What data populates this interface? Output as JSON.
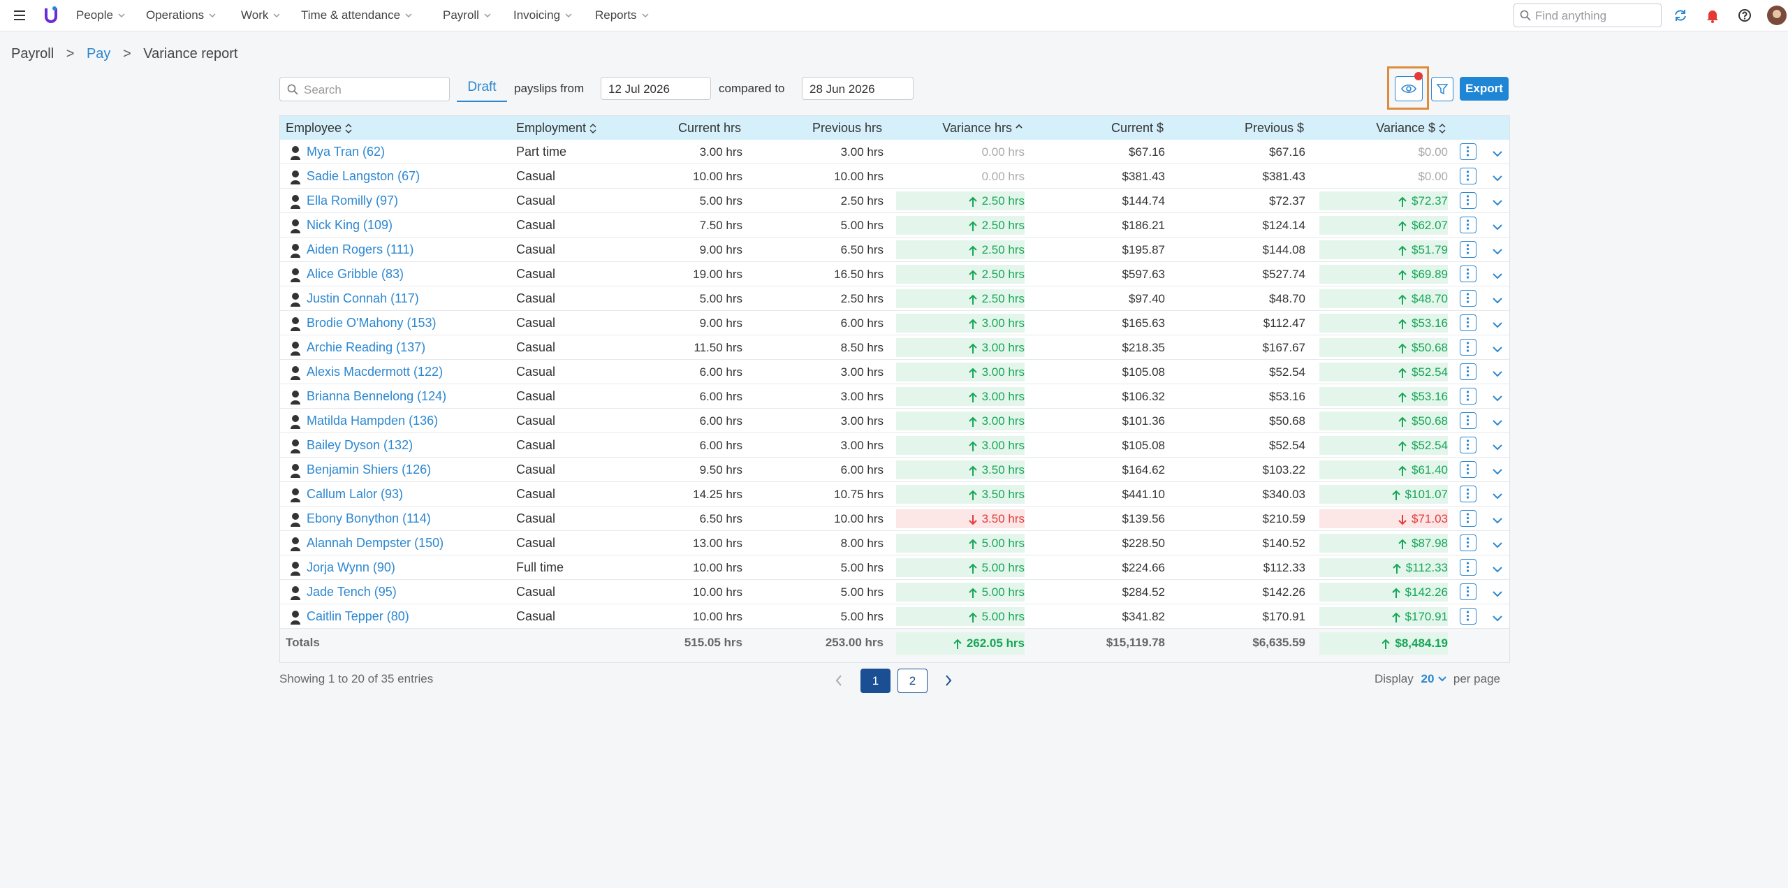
{
  "nav": {
    "items": [
      "People",
      "Operations",
      "Work",
      "Time & attendance",
      "Payroll",
      "Invoicing",
      "Reports"
    ],
    "search_placeholder": "Find anything"
  },
  "breadcrumb": [
    "Payroll",
    "Pay",
    "Variance report"
  ],
  "toolbar": {
    "search_placeholder": "Search",
    "tab": "Draft",
    "from_label": "payslips from",
    "from_date": "12 Jul 2026",
    "compared_label": "compared to",
    "compared_date": "28 Jun 2026",
    "export": "Export"
  },
  "table": {
    "headers": [
      "Employee",
      "Employment",
      "Current hrs",
      "Previous hrs",
      "Variance hrs",
      "Current $",
      "Previous $",
      "Variance $"
    ],
    "rows": [
      {
        "employee": "Mya Tran (62)",
        "employment": "Part time",
        "current_hrs": "3.00 hrs",
        "previous_hrs": "3.00 hrs",
        "variance_hrs": "0.00 hrs",
        "current_pay": "$67.16",
        "previous_pay": "$67.16",
        "variance_pay": "$0.00",
        "trend": "none"
      },
      {
        "employee": "Sadie Langston (67)",
        "employment": "Casual",
        "current_hrs": "10.00 hrs",
        "previous_hrs": "10.00 hrs",
        "variance_hrs": "0.00 hrs",
        "current_pay": "$381.43",
        "previous_pay": "$381.43",
        "variance_pay": "$0.00",
        "trend": "none"
      },
      {
        "employee": "Ella Romilly (97)",
        "employment": "Casual",
        "current_hrs": "5.00 hrs",
        "previous_hrs": "2.50 hrs",
        "variance_hrs": "2.50 hrs",
        "current_pay": "$144.74",
        "previous_pay": "$72.37",
        "variance_pay": "$72.37",
        "trend": "up"
      },
      {
        "employee": "Nick King (109)",
        "employment": "Casual",
        "current_hrs": "7.50 hrs",
        "previous_hrs": "5.00 hrs",
        "variance_hrs": "2.50 hrs",
        "current_pay": "$186.21",
        "previous_pay": "$124.14",
        "variance_pay": "$62.07",
        "trend": "up"
      },
      {
        "employee": "Aiden Rogers (111)",
        "employment": "Casual",
        "current_hrs": "9.00 hrs",
        "previous_hrs": "6.50 hrs",
        "variance_hrs": "2.50 hrs",
        "current_pay": "$195.87",
        "previous_pay": "$144.08",
        "variance_pay": "$51.79",
        "trend": "up"
      },
      {
        "employee": "Alice Gribble (83)",
        "employment": "Casual",
        "current_hrs": "19.00 hrs",
        "previous_hrs": "16.50 hrs",
        "variance_hrs": "2.50 hrs",
        "current_pay": "$597.63",
        "previous_pay": "$527.74",
        "variance_pay": "$69.89",
        "trend": "up"
      },
      {
        "employee": "Justin Connah (117)",
        "employment": "Casual",
        "current_hrs": "5.00 hrs",
        "previous_hrs": "2.50 hrs",
        "variance_hrs": "2.50 hrs",
        "current_pay": "$97.40",
        "previous_pay": "$48.70",
        "variance_pay": "$48.70",
        "trend": "up"
      },
      {
        "employee": "Brodie O'Mahony (153)",
        "employment": "Casual",
        "current_hrs": "9.00 hrs",
        "previous_hrs": "6.00 hrs",
        "variance_hrs": "3.00 hrs",
        "current_pay": "$165.63",
        "previous_pay": "$112.47",
        "variance_pay": "$53.16",
        "trend": "up"
      },
      {
        "employee": "Archie Reading (137)",
        "employment": "Casual",
        "current_hrs": "11.50 hrs",
        "previous_hrs": "8.50 hrs",
        "variance_hrs": "3.00 hrs",
        "current_pay": "$218.35",
        "previous_pay": "$167.67",
        "variance_pay": "$50.68",
        "trend": "up"
      },
      {
        "employee": "Alexis Macdermott (122)",
        "employment": "Casual",
        "current_hrs": "6.00 hrs",
        "previous_hrs": "3.00 hrs",
        "variance_hrs": "3.00 hrs",
        "current_pay": "$105.08",
        "previous_pay": "$52.54",
        "variance_pay": "$52.54",
        "trend": "up"
      },
      {
        "employee": "Brianna Bennelong (124)",
        "employment": "Casual",
        "current_hrs": "6.00 hrs",
        "previous_hrs": "3.00 hrs",
        "variance_hrs": "3.00 hrs",
        "current_pay": "$106.32",
        "previous_pay": "$53.16",
        "variance_pay": "$53.16",
        "trend": "up"
      },
      {
        "employee": "Matilda Hampden (136)",
        "employment": "Casual",
        "current_hrs": "6.00 hrs",
        "previous_hrs": "3.00 hrs",
        "variance_hrs": "3.00 hrs",
        "current_pay": "$101.36",
        "previous_pay": "$50.68",
        "variance_pay": "$50.68",
        "trend": "up"
      },
      {
        "employee": "Bailey Dyson (132)",
        "employment": "Casual",
        "current_hrs": "6.00 hrs",
        "previous_hrs": "3.00 hrs",
        "variance_hrs": "3.00 hrs",
        "current_pay": "$105.08",
        "previous_pay": "$52.54",
        "variance_pay": "$52.54",
        "trend": "up"
      },
      {
        "employee": "Benjamin Shiers (126)",
        "employment": "Casual",
        "current_hrs": "9.50 hrs",
        "previous_hrs": "6.00 hrs",
        "variance_hrs": "3.50 hrs",
        "current_pay": "$164.62",
        "previous_pay": "$103.22",
        "variance_pay": "$61.40",
        "trend": "up"
      },
      {
        "employee": "Callum Lalor (93)",
        "employment": "Casual",
        "current_hrs": "14.25 hrs",
        "previous_hrs": "10.75 hrs",
        "variance_hrs": "3.50 hrs",
        "current_pay": "$441.10",
        "previous_pay": "$340.03",
        "variance_pay": "$101.07",
        "trend": "up"
      },
      {
        "employee": "Ebony Bonython (114)",
        "employment": "Casual",
        "current_hrs": "6.50 hrs",
        "previous_hrs": "10.00 hrs",
        "variance_hrs": "3.50 hrs",
        "current_pay": "$139.56",
        "previous_pay": "$210.59",
        "variance_pay": "$71.03",
        "trend": "down"
      },
      {
        "employee": "Alannah Dempster (150)",
        "employment": "Casual",
        "current_hrs": "13.00 hrs",
        "previous_hrs": "8.00 hrs",
        "variance_hrs": "5.00 hrs",
        "current_pay": "$228.50",
        "previous_pay": "$140.52",
        "variance_pay": "$87.98",
        "trend": "up"
      },
      {
        "employee": "Jorja Wynn (90)",
        "employment": "Full time",
        "current_hrs": "10.00 hrs",
        "previous_hrs": "5.00 hrs",
        "variance_hrs": "5.00 hrs",
        "current_pay": "$224.66",
        "previous_pay": "$112.33",
        "variance_pay": "$112.33",
        "trend": "up"
      },
      {
        "employee": "Jade Tench (95)",
        "employment": "Casual",
        "current_hrs": "10.00 hrs",
        "previous_hrs": "5.00 hrs",
        "variance_hrs": "5.00 hrs",
        "current_pay": "$284.52",
        "previous_pay": "$142.26",
        "variance_pay": "$142.26",
        "trend": "up"
      },
      {
        "employee": "Caitlin Tepper (80)",
        "employment": "Casual",
        "current_hrs": "10.00 hrs",
        "previous_hrs": "5.00 hrs",
        "variance_hrs": "5.00 hrs",
        "current_pay": "$341.82",
        "previous_pay": "$170.91",
        "variance_pay": "$170.91",
        "trend": "up"
      }
    ],
    "totals": {
      "label": "Totals",
      "current_hrs": "515.05 hrs",
      "previous_hrs": "253.00 hrs",
      "variance_hrs": "262.05 hrs",
      "current_pay": "$15,119.78",
      "previous_pay": "$6,635.59",
      "variance_pay": "$8,484.19",
      "trend": "up"
    }
  },
  "footer": {
    "showing": "Showing 1 to 20 of 35 entries",
    "pages": [
      "1",
      "2"
    ],
    "display_label": "Display",
    "per_page": "20",
    "per_page_label": "per page"
  }
}
